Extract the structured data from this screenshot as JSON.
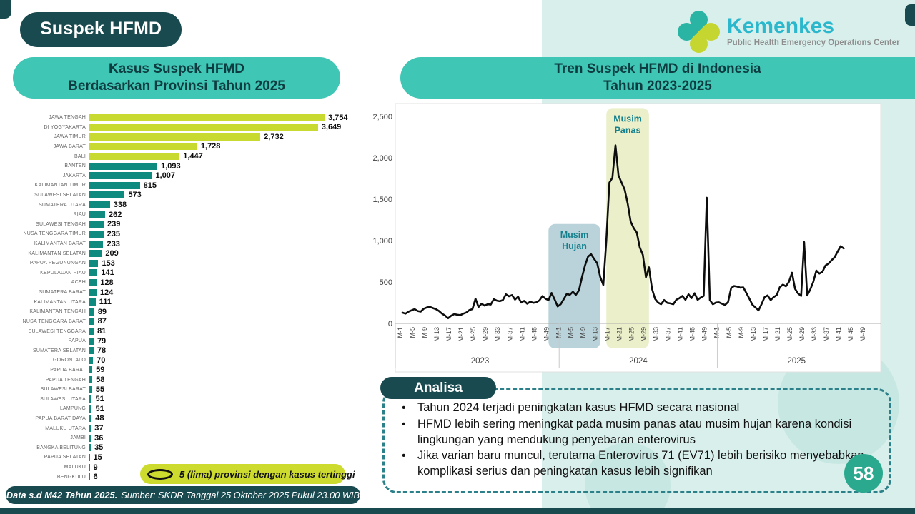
{
  "page": {
    "title": "Suspek HFMD",
    "page_number": "58",
    "footer_bold": "Data s.d M42 Tahun 2025.",
    "footer_rest": "Sumber: SKDR Tanggal 25 Oktober 2025 Pukul 23.00 WIB"
  },
  "logo": {
    "name": "Kemenkes",
    "subtitle": "Public Health Emergency Operations Center"
  },
  "left_chart": {
    "title_line1": "Kasus Suspek HFMD",
    "title_line2": "Berdasarkan Provinsi Tahun 2025",
    "legend": "5 (lima) provinsi dengan kasus tertinggi"
  },
  "right_chart": {
    "title_line1": "Tren Suspek HFMD di Indonesia",
    "title_line2": "Tahun 2023-2025"
  },
  "analisa": {
    "title": "Analisa",
    "bullets": [
      "Tahun 2024 terjadi peningkatan kasus HFMD secara nasional",
      "HFMD lebih sering meningkat pada musim panas atau musim hujan karena kondisi lingkungan yang mendukung penyebaran enterovirus",
      "Jika varian baru muncul, terutama Enterovirus 71 (EV71) lebih berisiko menyebabkan komplikasi serius dan peningkatan kasus lebih signifikan"
    ]
  },
  "colors": {
    "dark_teal": "#194a4f",
    "header_teal": "#3fc6b5",
    "panel_light_teal": "#d9efeb",
    "bar_lime": "#c8da2f",
    "bar_teal": "#0f8a7e",
    "line_black": "#0d0d0d",
    "band_hujan": "#bad3da",
    "band_panas": "#ebf0ca",
    "band_label_teal": "#16808d",
    "kemenkes_cyan": "#2bb7cc",
    "page_circle_teal": "#2aa98f"
  },
  "chart_data": [
    {
      "type": "bar",
      "orientation": "horizontal",
      "title": "Kasus Suspek HFMD Berdasarkan Provinsi Tahun 2025",
      "highlight_top_n": 5,
      "scale_max": 3754,
      "categories": [
        "JAWA TENGAH",
        "DI YOGYAKARTA",
        "JAWA TIMUR",
        "JAWA BARAT",
        "BALI",
        "BANTEN",
        "JAKARTA",
        "KALIMANTAN TIMUR",
        "SULAWESI SELATAN",
        "SUMATERA UTARA",
        "RIAU",
        "SULAWESI TENGAH",
        "NUSA TENGGARA TIMUR",
        "KALIMANTAN BARAT",
        "KALIMANTAN SELATAN",
        "PAPUA PEGUNUNGAN",
        "KEPULAUAN RIAU",
        "ACEH",
        "SUMATERA BARAT",
        "KALIMANTAN UTARA",
        "KALIMANTAN TENGAH",
        "NUSA TENGGARA BARAT",
        "SULAWESI TENGGARA",
        "PAPUA",
        "SUMATERA SELATAN",
        "GORONTALO",
        "PAPUA BARAT",
        "PAPUA TENGAH",
        "SULAWESI BARAT",
        "SULAWESI UTARA",
        "LAMPUNG",
        "PAPUA BARAT DAYA",
        "MALUKU UTARA",
        "JAMBI",
        "BANGKA BELITUNG",
        "PAPUA SELATAN",
        "MALUKU",
        "BENGKULU"
      ],
      "values": [
        3754,
        3649,
        2732,
        1728,
        1447,
        1093,
        1007,
        815,
        573,
        338,
        262,
        239,
        235,
        233,
        209,
        153,
        141,
        128,
        124,
        111,
        89,
        87,
        81,
        79,
        78,
        70,
        59,
        58,
        55,
        51,
        51,
        48,
        37,
        36,
        35,
        15,
        9,
        6
      ],
      "values_display": [
        "3,754",
        "3,649",
        "2,732",
        "1,728",
        "1,447",
        "1,093",
        "1,007",
        "815",
        "573",
        "338",
        "262",
        "239",
        "235",
        "233",
        "209",
        "153",
        "141",
        "128",
        "124",
        "111",
        "89",
        "87",
        "81",
        "79",
        "78",
        "70",
        "59",
        "58",
        "55",
        "51",
        "51",
        "48",
        "37",
        "36",
        "35",
        "15",
        "9",
        "6"
      ]
    },
    {
      "type": "line",
      "title": "Tren Suspek HFMD di Indonesia Tahun 2023-2025",
      "ylim": [
        0,
        2500
      ],
      "yticks": [
        "0",
        "500",
        "1,000",
        "1,500",
        "2,000",
        "2,500"
      ],
      "x_tick_labels_per_year": [
        "M-1",
        "M-5",
        "M-9",
        "M-13",
        "M-17",
        "M-21",
        "M-25",
        "M-29",
        "M-33",
        "M-37",
        "M-41",
        "M-45",
        "M-49"
      ],
      "years": [
        {
          "label": "2023",
          "weekly_values": [
            130,
            118,
            142,
            158,
            172,
            150,
            142,
            178,
            192,
            200,
            185,
            172,
            150,
            118,
            95,
            62,
            92,
            112,
            105,
            100,
            118,
            132,
            162,
            172,
            298,
            198,
            238,
            215,
            232,
            228,
            292,
            275,
            268,
            282,
            352,
            328,
            342,
            288,
            322,
            252,
            272,
            238,
            262,
            248,
            255,
            278,
            330,
            298,
            282,
            368,
            290,
            205
          ]
        },
        {
          "label": "2024",
          "weekly_values": [
            232,
            292,
            358,
            345,
            382,
            345,
            398,
            560,
            700,
            808,
            835,
            778,
            728,
            560,
            465,
            1000,
            1700,
            1758,
            2150,
            1788,
            1700,
            1618,
            1452,
            1228,
            1152,
            1098,
            918,
            828,
            558,
            678,
            418,
            298,
            252,
            232,
            282,
            248,
            242,
            232,
            285,
            305,
            332,
            285,
            352,
            305,
            365,
            285,
            312,
            332,
            1518,
            282,
            232,
            252
          ]
        },
        {
          "label": "2025",
          "weekly_values": [
            255,
            238,
            222,
            258,
            428,
            452,
            445,
            432,
            435,
            368,
            298,
            225,
            192,
            158,
            232,
            318,
            338,
            282,
            318,
            342,
            438,
            468,
            448,
            502,
            612,
            418,
            362,
            332,
            982,
            338,
            408,
            502,
            638,
            602,
            622,
            698,
            722,
            762,
            798,
            868,
            932,
            905
          ]
        }
      ],
      "bands": [
        {
          "label": "Musim Hujan",
          "start_week_index": 48,
          "end_week_index": 65,
          "top_value": 1200,
          "color": "#bad3da"
        },
        {
          "label": "Musim Panas",
          "start_week_index": 67,
          "end_week_index": 81,
          "top_value": 2600,
          "color": "#ebf0ca"
        }
      ],
      "line_color": "#0d0d0d",
      "legend_position": "none",
      "grid": false
    }
  ]
}
